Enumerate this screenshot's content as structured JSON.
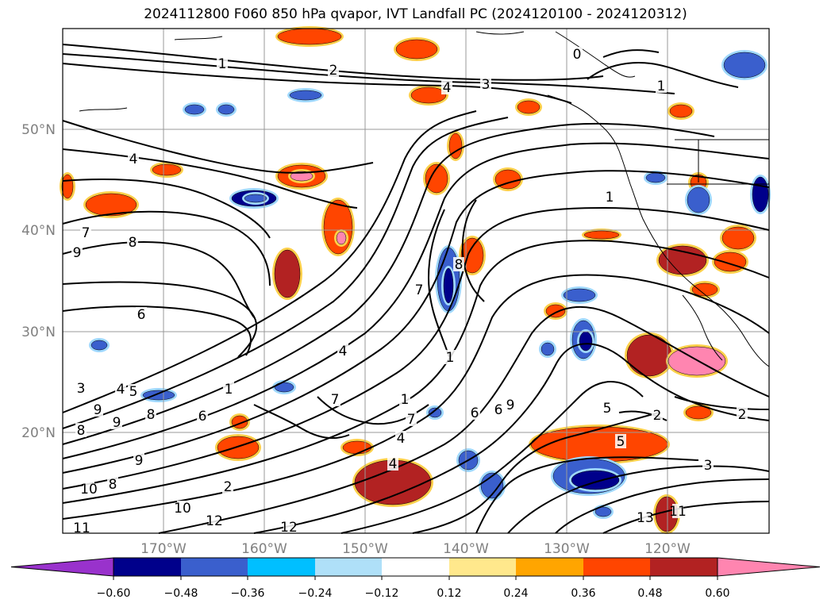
{
  "title": "2024112800 F060 850 hPa qvapor, IVT Landfall PC (2024120100 - 2024120312)",
  "lat_labels": [
    "50°N",
    "40°N",
    "30°N",
    "20°N"
  ],
  "lon_labels": [
    "170°W",
    "160°W",
    "150°W",
    "140°W",
    "130°W",
    "120°W"
  ],
  "colorbar": {
    "ticks": [
      "−0.60",
      "−0.48",
      "−0.36",
      "−0.24",
      "−0.12",
      "0.12",
      "0.24",
      "0.36",
      "0.48",
      "0.60"
    ],
    "colors": [
      "#9932cc",
      "#00008b",
      "#3a5fcd",
      "#00bfff",
      "#afe0f8",
      "#ffffff",
      "#ffe88c",
      "#ffa500",
      "#ff4500",
      "#b22222",
      "#ff85b0"
    ]
  },
  "contour_labels": [
    "1",
    "2",
    "4",
    "3",
    "0",
    "1",
    "4",
    "1",
    "7",
    "8",
    "9",
    "6",
    "8",
    "7",
    "4",
    "3",
    "4",
    "5",
    "9",
    "9",
    "8",
    "8",
    "6",
    "4",
    "1",
    "1",
    "7",
    "7",
    "4",
    "2",
    "6",
    "6",
    "9",
    "5",
    "5",
    "2",
    "2",
    "3",
    "11",
    "13",
    "12",
    "12",
    "10",
    "10",
    "8",
    "11",
    "9",
    "1"
  ]
}
